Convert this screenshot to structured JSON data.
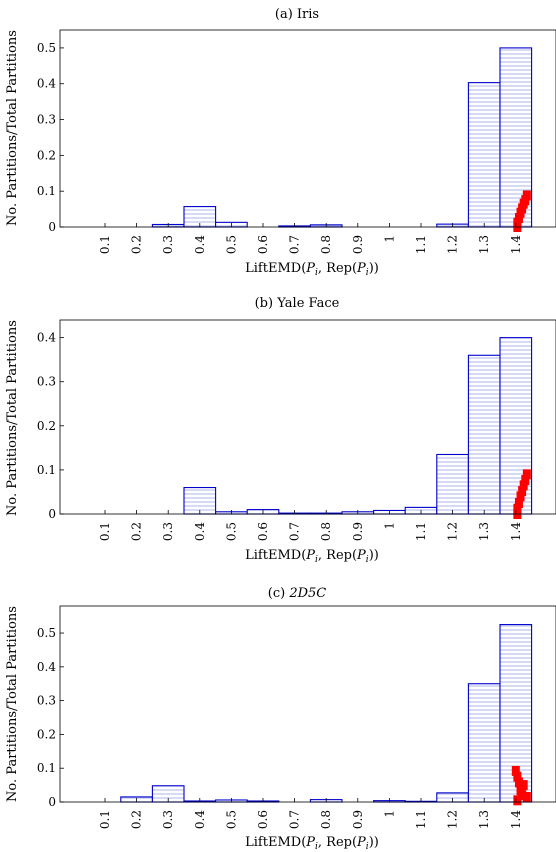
{
  "chart_data": [
    {
      "type": "bar",
      "title": "(a) Iris",
      "xlabel": "LiftEMD(Pi, Rep(Pi))",
      "ylabel": "No. Partitions/Total Partitions",
      "categories": [
        "0.1",
        "0.2",
        "0.3",
        "0.4",
        "0.5",
        "0.6",
        "0.7",
        "0.8",
        "0.9",
        "1",
        "1.1",
        "1.2",
        "1.3",
        "1.4"
      ],
      "values": [
        0,
        0,
        0.007,
        0.057,
        0.013,
        0,
        0.003,
        0.006,
        0,
        0,
        0,
        0.008,
        0.403,
        0.5
      ],
      "yticks": [
        "0",
        "0.1",
        "0.2",
        "0.3",
        "0.4",
        "0.5"
      ],
      "ylim": [
        0,
        0.55
      ],
      "bar_color": "#0000cc",
      "bar_fill": "#dfe3f7",
      "marker_color": "#ff0000",
      "marker_points": [
        [
          1.405,
          0.0
        ],
        [
          1.405,
          0.012
        ],
        [
          1.41,
          0.025
        ],
        [
          1.415,
          0.04
        ],
        [
          1.42,
          0.052
        ],
        [
          1.425,
          0.065
        ],
        [
          1.43,
          0.075
        ],
        [
          1.435,
          0.088
        ]
      ]
    },
    {
      "type": "bar",
      "title": "(b) Yale Face",
      "xlabel": "LiftEMD(Pi, Rep(Pi))",
      "ylabel": "No. Partitions/Total Partitions",
      "categories": [
        "0.1",
        "0.2",
        "0.3",
        "0.4",
        "0.5",
        "0.6",
        "0.7",
        "0.8",
        "0.9",
        "1",
        "1.1",
        "1.2",
        "1.3",
        "1.4"
      ],
      "values": [
        0,
        0,
        0,
        0.06,
        0.005,
        0.01,
        0.002,
        0.002,
        0.005,
        0.008,
        0.015,
        0.135,
        0.36,
        0.4
      ],
      "yticks": [
        "0",
        "0.1",
        "0.2",
        "0.3",
        "0.4"
      ],
      "ylim": [
        0,
        0.44
      ],
      "bar_color": "#0000cc",
      "bar_fill": "#dfe3f7",
      "marker_color": "#ff0000",
      "marker_points": [
        [
          1.405,
          0.0
        ],
        [
          1.405,
          0.012
        ],
        [
          1.41,
          0.025
        ],
        [
          1.415,
          0.04
        ],
        [
          1.42,
          0.052
        ],
        [
          1.425,
          0.065
        ],
        [
          1.43,
          0.077
        ],
        [
          1.435,
          0.09
        ]
      ]
    },
    {
      "type": "bar",
      "title": "(c) 2D5C",
      "xlabel": "LiftEMD(Pi, Rep(Pi))",
      "ylabel": "No. Partitions/Total Partitions",
      "categories": [
        "0.1",
        "0.2",
        "0.3",
        "0.4",
        "0.5",
        "0.6",
        "0.7",
        "0.8",
        "0.9",
        "1",
        "1.1",
        "1.2",
        "1.3",
        "1.4"
      ],
      "values": [
        0,
        0.015,
        0.048,
        0.003,
        0.006,
        0.003,
        0,
        0.007,
        0,
        0.004,
        0.002,
        0.027,
        0.35,
        0.525
      ],
      "yticks": [
        "0",
        "0.1",
        "0.2",
        "0.3",
        "0.4",
        "0.5"
      ],
      "ylim": [
        0,
        0.58
      ],
      "bar_color": "#0000cc",
      "bar_fill": "#dfe3f7",
      "marker_color": "#ff0000",
      "marker_points": [
        [
          1.4,
          0.092
        ],
        [
          1.405,
          0.075
        ],
        [
          1.41,
          0.058
        ],
        [
          1.425,
          0.05
        ],
        [
          1.415,
          0.035
        ],
        [
          1.42,
          0.02
        ],
        [
          1.435,
          0.015
        ],
        [
          1.405,
          0.005
        ]
      ]
    }
  ]
}
